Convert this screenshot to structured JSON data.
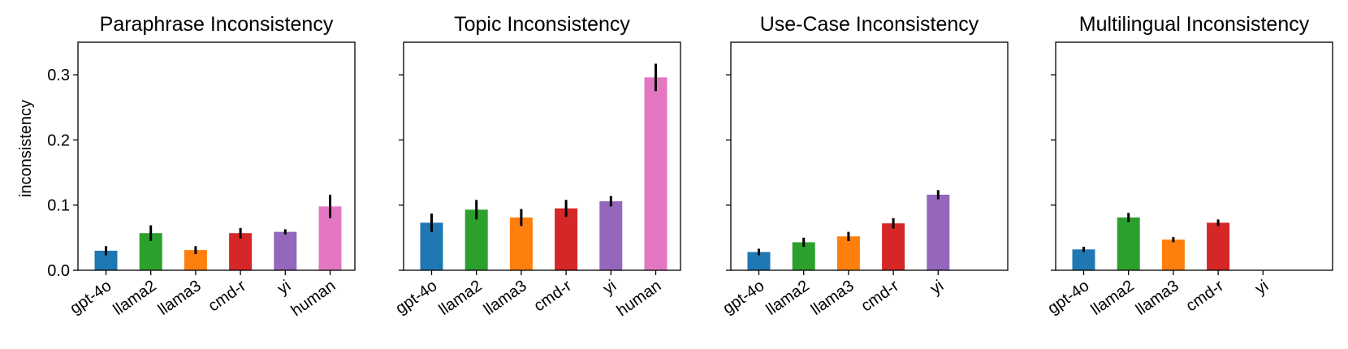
{
  "figure": {
    "ylabel": "inconsistency"
  },
  "colors": {
    "gpt-4o": "#1f77b4",
    "llama2": "#2ca02c",
    "llama3": "#ff7f0e",
    "cmd-r": "#d62728",
    "yi": "#9467bd",
    "human": "#e377c2",
    "error_bar": "#000000"
  },
  "chart_data": [
    {
      "type": "bar",
      "title": "Paraphrase Inconsistency",
      "ylabel": "inconsistency",
      "ylim": [
        0,
        0.35
      ],
      "yticks": [
        "0.0",
        "0.1",
        "0.2",
        "0.3"
      ],
      "categories": [
        "gpt-4o",
        "llama2",
        "llama3",
        "cmd-r",
        "yi",
        "human"
      ],
      "values": [
        0.03,
        0.057,
        0.031,
        0.057,
        0.059,
        0.098
      ],
      "errors": [
        0.007,
        0.012,
        0.006,
        0.008,
        0.004,
        0.018
      ]
    },
    {
      "type": "bar",
      "title": "Topic Inconsistency",
      "ylim": [
        0,
        0.35
      ],
      "categories": [
        "gpt-4o",
        "llama2",
        "llama3",
        "cmd-r",
        "yi",
        "human"
      ],
      "values": [
        0.073,
        0.093,
        0.081,
        0.095,
        0.106,
        0.296
      ],
      "errors": [
        0.014,
        0.015,
        0.013,
        0.013,
        0.008,
        0.021
      ]
    },
    {
      "type": "bar",
      "title": "Use-Case Inconsistency",
      "ylim": [
        0,
        0.35
      ],
      "categories": [
        "gpt-4o",
        "llama2",
        "llama3",
        "cmd-r",
        "yi"
      ],
      "values": [
        0.028,
        0.043,
        0.052,
        0.072,
        0.116
      ],
      "errors": [
        0.005,
        0.007,
        0.007,
        0.008,
        0.007
      ]
    },
    {
      "type": "bar",
      "title": "Multilingual Inconsistency",
      "ylim": [
        0,
        0.35
      ],
      "categories": [
        "gpt-4o",
        "llama2",
        "llama3",
        "cmd-r",
        "yi"
      ],
      "values": [
        0.032,
        0.081,
        0.047,
        0.073,
        null
      ],
      "errors": [
        0.004,
        0.007,
        0.004,
        0.005,
        null
      ]
    }
  ]
}
